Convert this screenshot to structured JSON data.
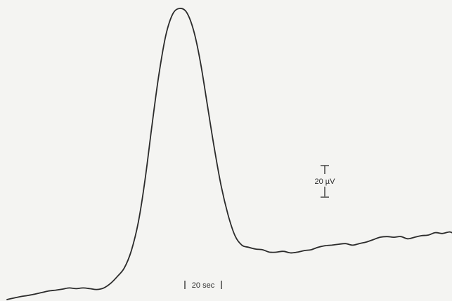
{
  "chart_data": {
    "type": "line",
    "title": "",
    "xlabel": "",
    "ylabel": "",
    "x_unit": "sec",
    "y_unit": "µV",
    "xlim": [
      0,
      277
    ],
    "ylim": [
      0,
      170
    ],
    "grid": false,
    "series": [
      {
        "values": [
          [
            0,
            0
          ],
          [
            4.3,
            0.9
          ],
          [
            8.6,
            1.8
          ],
          [
            12.9,
            2.4
          ],
          [
            17.2,
            3.2
          ],
          [
            21.5,
            4.1
          ],
          [
            25.8,
            5.0
          ],
          [
            30.1,
            5.5
          ],
          [
            34.4,
            6.1
          ],
          [
            38.7,
            6.8
          ],
          [
            43,
            6.4
          ],
          [
            47.3,
            6.8
          ],
          [
            51.6,
            6.4
          ],
          [
            55.9,
            5.9
          ],
          [
            60.2,
            6.8
          ],
          [
            64.5,
            9.5
          ],
          [
            68.8,
            13.6
          ],
          [
            73.1,
            18.6
          ],
          [
            77.4,
            28.6
          ],
          [
            81.7,
            45.0
          ],
          [
            86,
            70.5
          ],
          [
            90.3,
            102.3
          ],
          [
            94.6,
            131.8
          ],
          [
            98.9,
            154.5
          ],
          [
            103.2,
            166.8
          ],
          [
            107.5,
            170.0
          ],
          [
            111.8,
            167.7
          ],
          [
            116.1,
            157.3
          ],
          [
            120.4,
            138.6
          ],
          [
            124.7,
            113.6
          ],
          [
            129,
            88.6
          ],
          [
            133.3,
            66.4
          ],
          [
            137.6,
            49.5
          ],
          [
            141.9,
            37.3
          ],
          [
            146.2,
            31.8
          ],
          [
            150.5,
            30.5
          ],
          [
            154.8,
            29.5
          ],
          [
            159.1,
            29.1
          ],
          [
            163.4,
            27.7
          ],
          [
            167.7,
            27.7
          ],
          [
            172,
            28.2
          ],
          [
            176.3,
            27.3
          ],
          [
            180.6,
            27.7
          ],
          [
            184.9,
            28.6
          ],
          [
            189.2,
            29.1
          ],
          [
            193.5,
            30.5
          ],
          [
            197.8,
            31.4
          ],
          [
            202.1,
            31.8
          ],
          [
            206.4,
            32.3
          ],
          [
            210.7,
            32.7
          ],
          [
            215,
            31.8
          ],
          [
            219.3,
            32.7
          ],
          [
            223.6,
            33.6
          ],
          [
            227.9,
            35.0
          ],
          [
            232.2,
            36.4
          ],
          [
            236.5,
            36.8
          ],
          [
            240.8,
            36.4
          ],
          [
            245.1,
            36.8
          ],
          [
            249.4,
            35.5
          ],
          [
            253.7,
            36.4
          ],
          [
            258,
            37.3
          ],
          [
            262.3,
            37.7
          ],
          [
            266.6,
            39.1
          ],
          [
            270.9,
            38.6
          ],
          [
            275.2,
            39.5
          ],
          [
            277,
            39.1
          ]
        ]
      }
    ],
    "scale_bars": {
      "time": {
        "label": "20 sec",
        "value": 20
      },
      "voltage": {
        "label": "20 µV",
        "value": 20
      }
    }
  }
}
